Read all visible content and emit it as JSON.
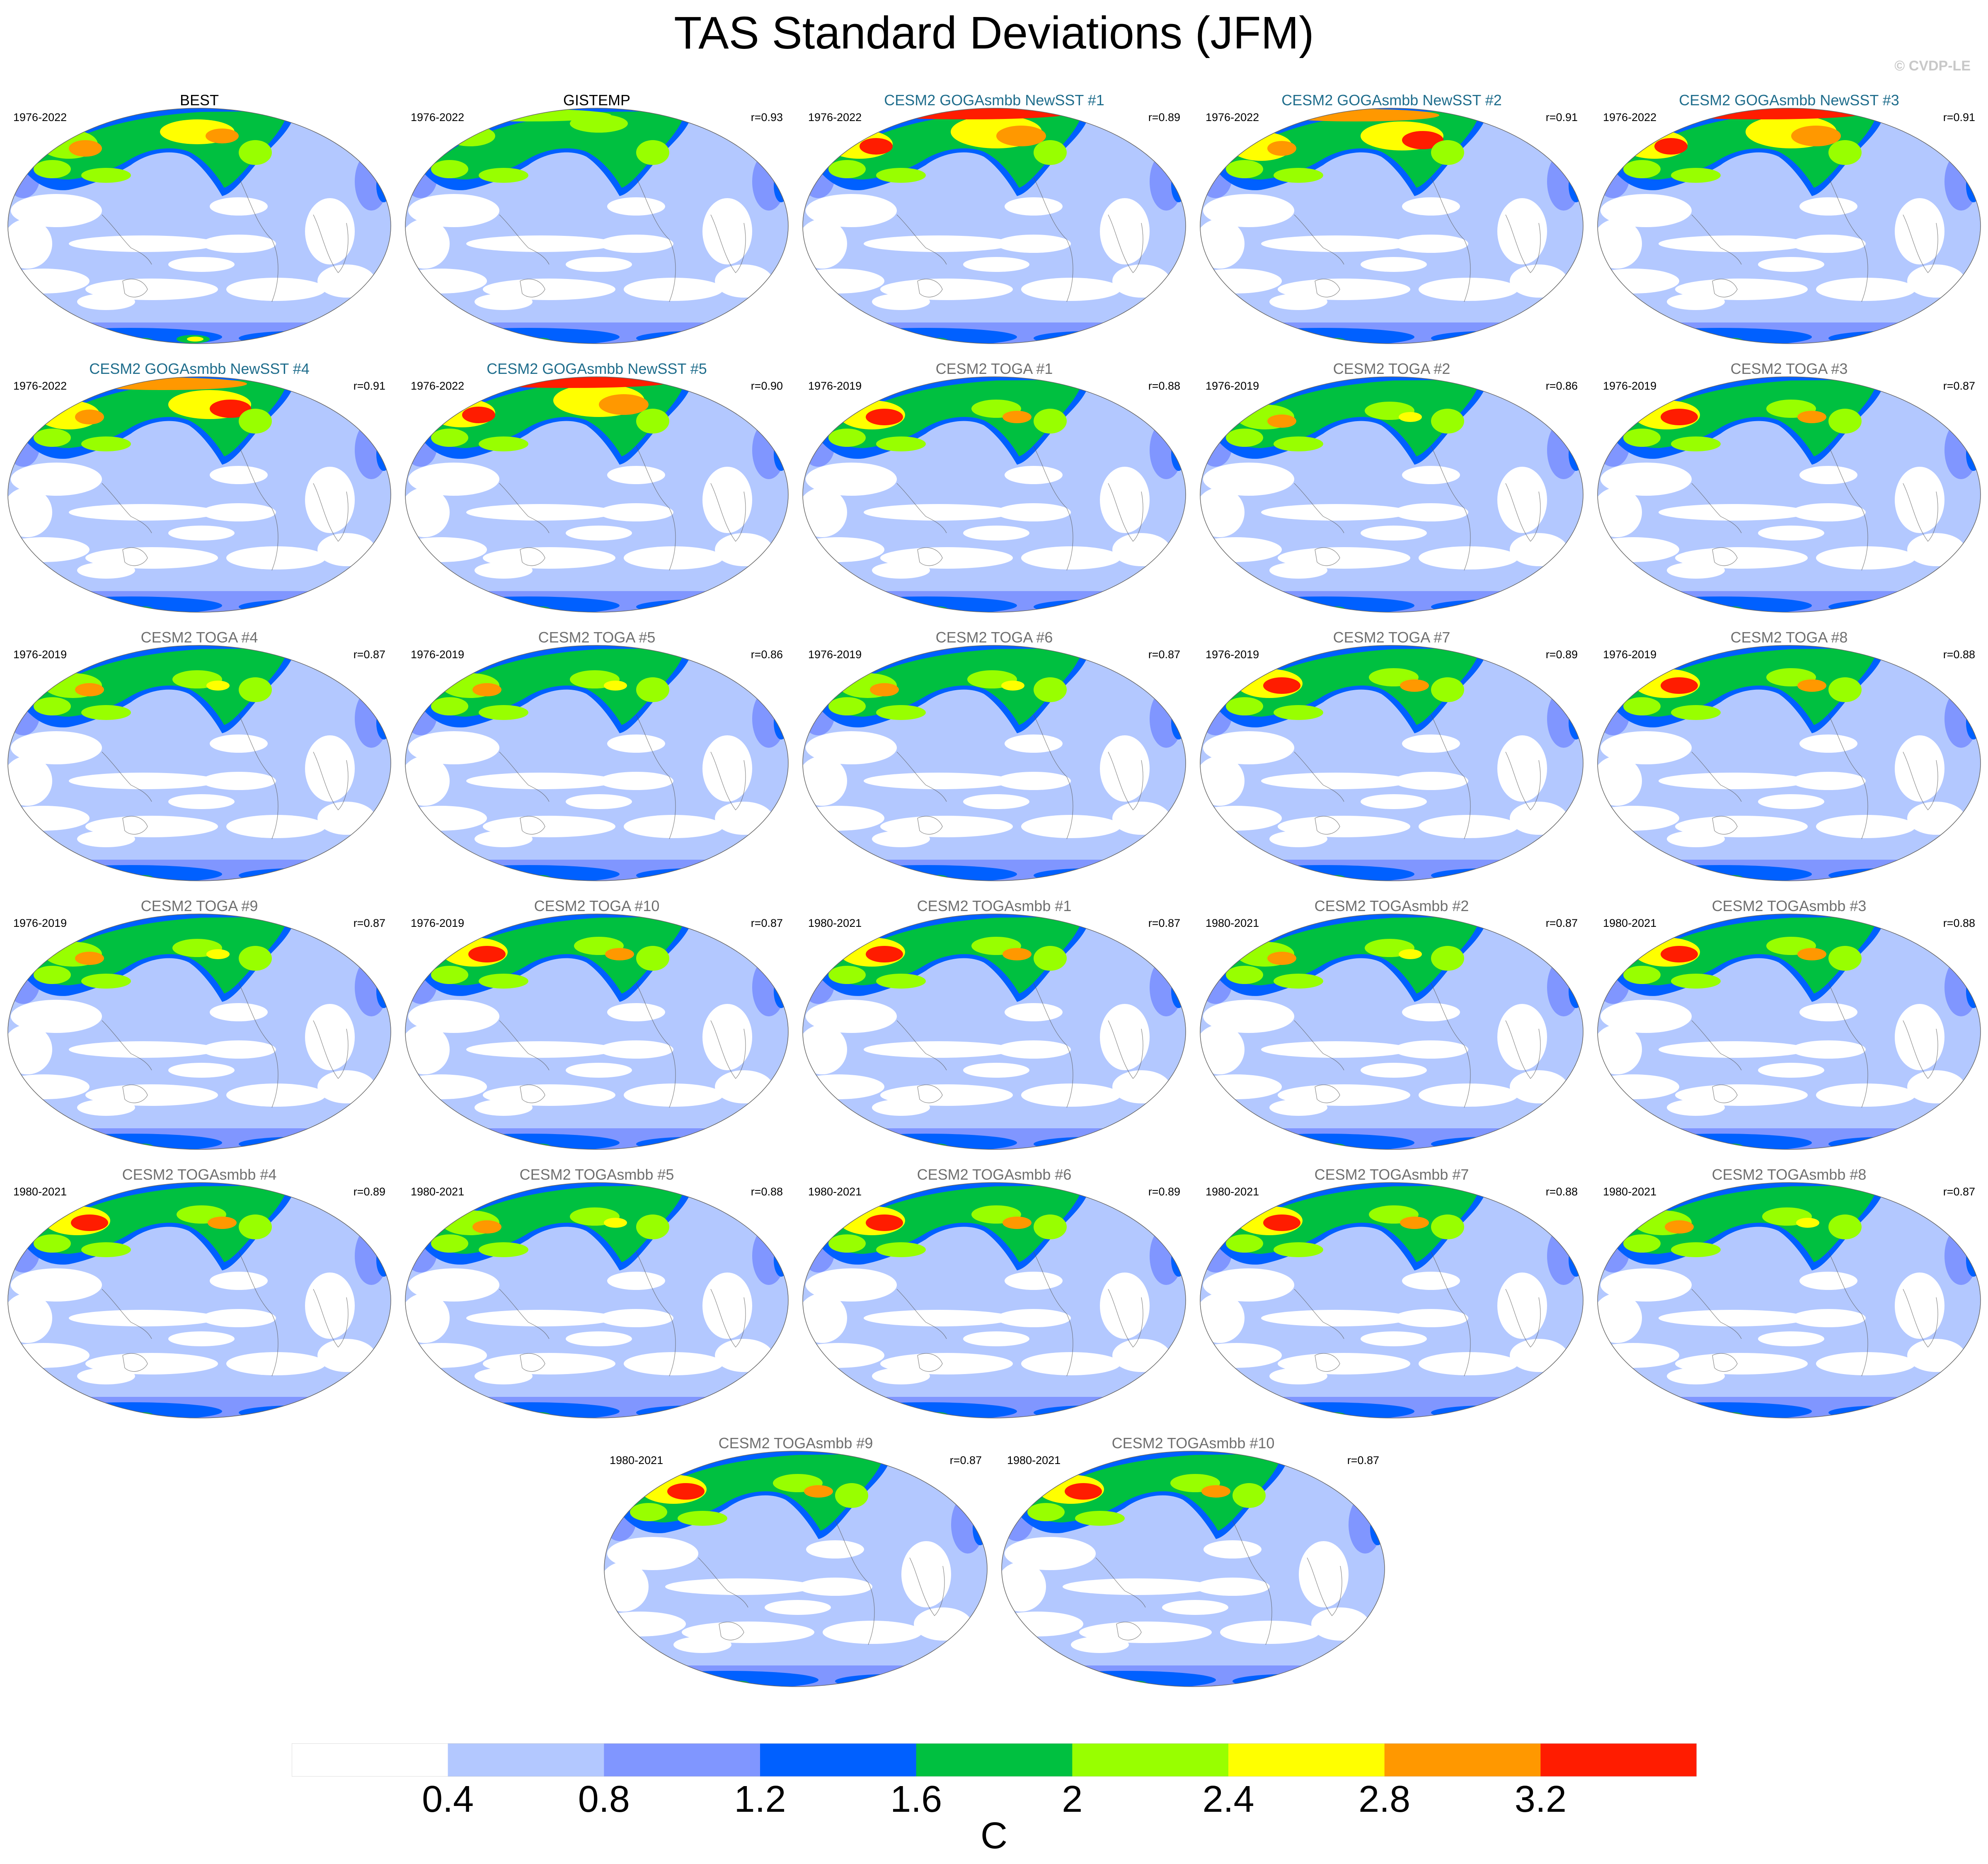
{
  "title": "TAS Standard Deviations (JFM)",
  "credit": "© CVDP-LE",
  "palette": [
    "#ffffff",
    "#b3c8ff",
    "#8096ff",
    "#0060ff",
    "#00c040",
    "#98ff00",
    "#ffff00",
    "#ff9800",
    "#ff1c00"
  ],
  "colorbar": {
    "levels": [
      "0.4",
      "0.8",
      "1.2",
      "1.6",
      "2",
      "2.4",
      "2.8",
      "3.2"
    ],
    "unit": "C"
  },
  "panels": [
    {
      "title": "BEST",
      "period": "1976-2022",
      "corr": "",
      "style": "black",
      "variant": 0
    },
    {
      "title": "GISTEMP",
      "period": "1976-2022",
      "corr": "r=0.93",
      "style": "black",
      "variant": 1
    },
    {
      "title": "CESM2 GOGAsmbb NewSST #1",
      "period": "1976-2022",
      "corr": "r=0.89",
      "style": "teal",
      "variant": 2
    },
    {
      "title": "CESM2 GOGAsmbb NewSST #2",
      "period": "1976-2022",
      "corr": "r=0.91",
      "style": "teal",
      "variant": 3
    },
    {
      "title": "CESM2 GOGAsmbb NewSST #3",
      "period": "1976-2022",
      "corr": "r=0.91",
      "style": "teal",
      "variant": 2
    },
    {
      "title": "CESM2 GOGAsmbb NewSST #4",
      "period": "1976-2022",
      "corr": "r=0.91",
      "style": "teal",
      "variant": 3
    },
    {
      "title": "CESM2 GOGAsmbb NewSST #5",
      "period": "1976-2022",
      "corr": "r=0.90",
      "style": "teal",
      "variant": 2
    },
    {
      "title": "CESM2 TOGA #1",
      "period": "1976-2019",
      "corr": "r=0.88",
      "style": "gray",
      "variant": 4
    },
    {
      "title": "CESM2 TOGA #2",
      "period": "1976-2019",
      "corr": "r=0.86",
      "style": "gray",
      "variant": 5
    },
    {
      "title": "CESM2 TOGA #3",
      "period": "1976-2019",
      "corr": "r=0.87",
      "style": "gray",
      "variant": 4
    },
    {
      "title": "CESM2 TOGA #4",
      "period": "1976-2019",
      "corr": "r=0.87",
      "style": "gray",
      "variant": 5
    },
    {
      "title": "CESM2 TOGA #5",
      "period": "1976-2019",
      "corr": "r=0.86",
      "style": "gray",
      "variant": 5
    },
    {
      "title": "CESM2 TOGA #6",
      "period": "1976-2019",
      "corr": "r=0.87",
      "style": "gray",
      "variant": 5
    },
    {
      "title": "CESM2 TOGA #7",
      "period": "1976-2019",
      "corr": "r=0.89",
      "style": "gray",
      "variant": 4
    },
    {
      "title": "CESM2 TOGA #8",
      "period": "1976-2019",
      "corr": "r=0.88",
      "style": "gray",
      "variant": 4
    },
    {
      "title": "CESM2 TOGA #9",
      "period": "1976-2019",
      "corr": "r=0.87",
      "style": "gray",
      "variant": 5
    },
    {
      "title": "CESM2 TOGA #10",
      "period": "1976-2019",
      "corr": "r=0.87",
      "style": "gray",
      "variant": 4
    },
    {
      "title": "CESM2 TOGAsmbb #1",
      "period": "1980-2021",
      "corr": "r=0.87",
      "style": "gray",
      "variant": 4
    },
    {
      "title": "CESM2 TOGAsmbb #2",
      "period": "1980-2021",
      "corr": "r=0.87",
      "style": "gray",
      "variant": 5
    },
    {
      "title": "CESM2 TOGAsmbb #3",
      "period": "1980-2021",
      "corr": "r=0.88",
      "style": "gray",
      "variant": 4
    },
    {
      "title": "CESM2 TOGAsmbb #4",
      "period": "1980-2021",
      "corr": "r=0.89",
      "style": "gray",
      "variant": 4
    },
    {
      "title": "CESM2 TOGAsmbb #5",
      "period": "1980-2021",
      "corr": "r=0.88",
      "style": "gray",
      "variant": 5
    },
    {
      "title": "CESM2 TOGAsmbb #6",
      "period": "1980-2021",
      "corr": "r=0.89",
      "style": "gray",
      "variant": 4
    },
    {
      "title": "CESM2 TOGAsmbb #7",
      "period": "1980-2021",
      "corr": "r=0.88",
      "style": "gray",
      "variant": 4
    },
    {
      "title": "CESM2 TOGAsmbb #8",
      "period": "1980-2021",
      "corr": "r=0.87",
      "style": "gray",
      "variant": 5
    },
    {
      "title": "CESM2 TOGAsmbb #9",
      "period": "1980-2021",
      "corr": "r=0.87",
      "style": "gray",
      "variant": 4
    },
    {
      "title": "CESM2 TOGAsmbb #10",
      "period": "1980-2021",
      "corr": "r=0.87",
      "style": "gray",
      "variant": 4
    }
  ]
}
